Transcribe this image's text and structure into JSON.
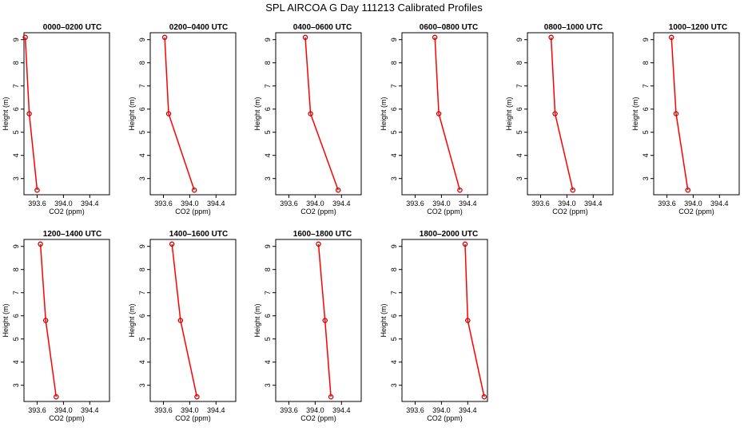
{
  "title": "SPL AIRCOA G  Day 111213  Calibrated Profiles",
  "chart_data": {
    "type": "line",
    "xlabel": "CO2 (ppm)",
    "ylabel": "Height (m)",
    "x_ticks": [
      "393.6",
      "394.0",
      "394.4"
    ],
    "y_ticks": [
      "3",
      "4",
      "5",
      "6",
      "7",
      "8",
      "9"
    ],
    "xlim": [
      393.4,
      394.7
    ],
    "ylim": [
      2.3,
      9.3
    ],
    "heights": [
      9.1,
      5.8,
      2.5
    ],
    "color": "#ff0000",
    "marker_color": "#cc0000",
    "panels": [
      {
        "title": "0000–0200 UTC",
        "co2": [
          393.42,
          393.48,
          393.6
        ]
      },
      {
        "title": "0200–0400 UTC",
        "co2": [
          393.62,
          393.68,
          394.07
        ]
      },
      {
        "title": "0400–0600 UTC",
        "co2": [
          393.85,
          393.93,
          394.35
        ]
      },
      {
        "title": "0600–0800 UTC",
        "co2": [
          393.9,
          393.96,
          394.28
        ]
      },
      {
        "title": "0800–1000 UTC",
        "co2": [
          393.76,
          393.82,
          394.09
        ]
      },
      {
        "title": "1000–1200 UTC",
        "co2": [
          393.67,
          393.74,
          393.92
        ]
      },
      {
        "title": "1200–1400 UTC",
        "co2": [
          393.65,
          393.73,
          393.89
        ]
      },
      {
        "title": "1400–1600 UTC",
        "co2": [
          393.73,
          393.86,
          394.11
        ]
      },
      {
        "title": "1600–1800 UTC",
        "co2": [
          394.05,
          394.15,
          394.24
        ]
      },
      {
        "title": "1800–2000 UTC",
        "co2": [
          394.36,
          394.4,
          394.65
        ]
      }
    ]
  }
}
